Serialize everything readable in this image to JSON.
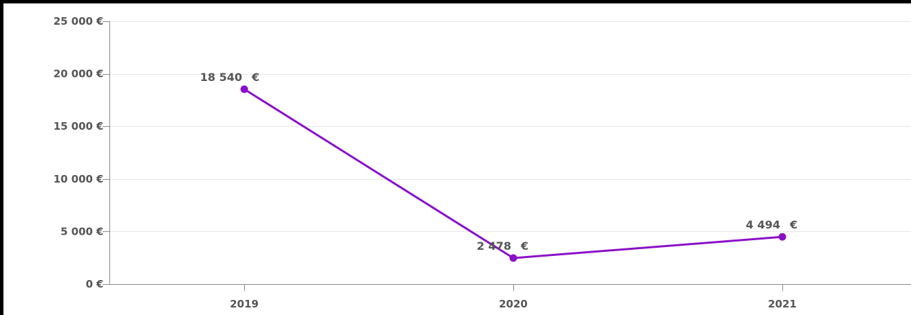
{
  "chart_data": {
    "type": "line",
    "title": "",
    "xlabel": "",
    "ylabel": "",
    "categories": [
      "2019",
      "2020",
      "2021"
    ],
    "series": [
      {
        "values": [
          18540,
          2478,
          4494
        ],
        "data_labels": [
          "18 540  €",
          "2 478  €",
          "4 494  €"
        ],
        "color": "#8a0fc8"
      }
    ],
    "ylim": [
      0,
      25000
    ],
    "yticks": [
      0,
      5000,
      10000,
      15000,
      20000,
      25000
    ],
    "ytick_labels": [
      "0  €",
      "5 000  €",
      "10 000  €",
      "15 000  €",
      "20 000  €",
      "25 000  €"
    ],
    "grid": true,
    "legend": "none"
  },
  "colors": {
    "line": "#8a0fc8",
    "grid": "#e6e6e6",
    "axis": "#888888",
    "text": "#555555",
    "border": "#000000"
  }
}
